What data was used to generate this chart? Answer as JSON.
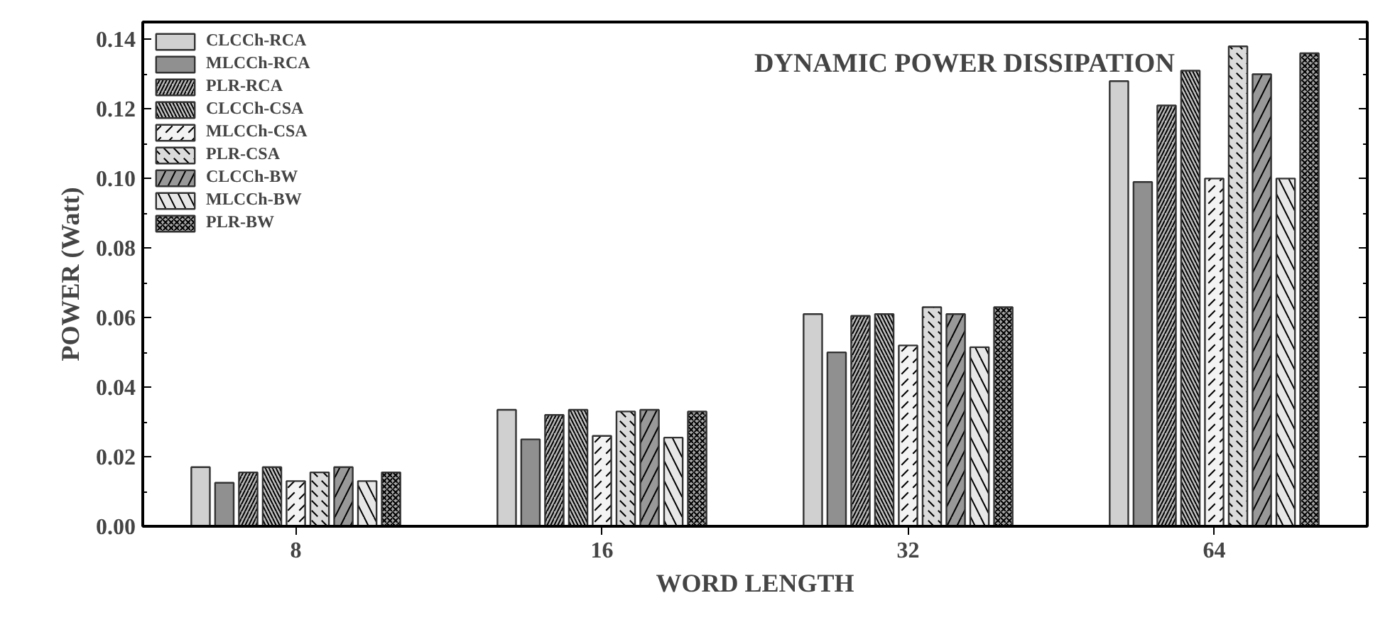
{
  "chart_data": {
    "type": "bar",
    "title": "DYNAMIC POWER DISSIPATION",
    "xlabel": "WORD LENGTH",
    "ylabel": "POWER (Watt)",
    "categories": [
      "8",
      "16",
      "32",
      "64"
    ],
    "series": [
      {
        "name": "CLCCh-RCA",
        "color": "#d0d0d0",
        "values": [
          0.017,
          0.0335,
          0.061,
          0.128
        ]
      },
      {
        "name": "MLCCh-RCA",
        "color": "#909090",
        "values": [
          0.0125,
          0.025,
          0.05,
          0.099
        ]
      },
      {
        "name": "PLR-RCA",
        "color": "#b7b7b7",
        "values": [
          0.0155,
          0.032,
          0.0605,
          0.121
        ]
      },
      {
        "name": "CLCCh-CSA",
        "color": "#c3c3c3",
        "values": [
          0.017,
          0.0335,
          0.061,
          0.131
        ]
      },
      {
        "name": "MLCCh-CSA",
        "color": "#f3f3f3",
        "values": [
          0.013,
          0.026,
          0.052,
          0.1
        ]
      },
      {
        "name": "PLR-CSA",
        "color": "#dbdbdb",
        "values": [
          0.0155,
          0.033,
          0.063,
          0.138
        ]
      },
      {
        "name": "CLCCh-BW",
        "color": "#999999",
        "values": [
          0.017,
          0.0335,
          0.061,
          0.13
        ]
      },
      {
        "name": "MLCCh-BW",
        "color": "#e7e7e7",
        "values": [
          0.013,
          0.0255,
          0.0515,
          0.1
        ]
      },
      {
        "name": "PLR-BW",
        "color": "#a5a5a5",
        "values": [
          0.0155,
          0.033,
          0.063,
          0.136
        ]
      }
    ],
    "ylim": [
      0,
      0.145
    ],
    "yticks": [
      {
        "value": 0,
        "label": "0.00"
      },
      0.02,
      0.04,
      0.06,
      0.08,
      {
        "value": 0.1,
        "label": "0.10"
      },
      0.12,
      0.14
    ],
    "grid": false,
    "legend": "top left"
  }
}
